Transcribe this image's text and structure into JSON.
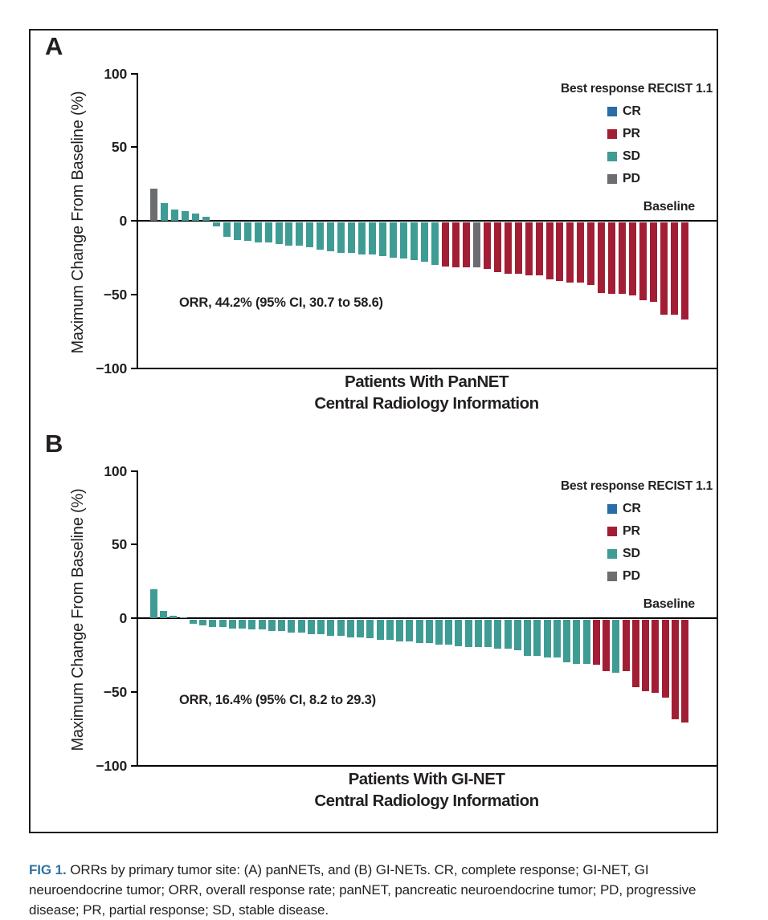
{
  "colors": {
    "CR": "#2A6CA8",
    "PR": "#A21E35",
    "SD": "#3F9C94",
    "PD": "#6C6D70",
    "fig_label": "#2E74A3",
    "axis": "#000000"
  },
  "legend": {
    "title": "Best response RECIST 1.1",
    "entries": [
      {
        "label": "CR",
        "code": "CR"
      },
      {
        "label": "PR",
        "code": "PR"
      },
      {
        "label": "SD",
        "code": "SD"
      },
      {
        "label": "PD",
        "code": "PD"
      }
    ]
  },
  "chart_data": [
    {
      "type": "bar",
      "panel": "A",
      "title_line1": "Patients With PanNET",
      "title_line2": "Central Radiology Information",
      "ylabel": "Maximum Change From Baseline (%)",
      "yticks": [
        "100",
        "50",
        "0",
        "−50",
        "−100"
      ],
      "ylim": [
        -100,
        100
      ],
      "baseline_label": "Baseline",
      "annotation": "ORR, 44.2% (95% CI, 30.7 to 58.6)",
      "bars": [
        [
          22,
          "PD"
        ],
        [
          12,
          "SD"
        ],
        [
          8,
          "SD"
        ],
        [
          7,
          "SD"
        ],
        [
          5,
          "SD"
        ],
        [
          3,
          "SD"
        ],
        [
          -3,
          "SD"
        ],
        [
          -10,
          "SD"
        ],
        [
          -12,
          "SD"
        ],
        [
          -13,
          "SD"
        ],
        [
          -14,
          "SD"
        ],
        [
          -14,
          "SD"
        ],
        [
          -15,
          "SD"
        ],
        [
          -16,
          "SD"
        ],
        [
          -16,
          "SD"
        ],
        [
          -17,
          "SD"
        ],
        [
          -19,
          "SD"
        ],
        [
          -20,
          "SD"
        ],
        [
          -21,
          "SD"
        ],
        [
          -21,
          "SD"
        ],
        [
          -22,
          "SD"
        ],
        [
          -22,
          "SD"
        ],
        [
          -23,
          "SD"
        ],
        [
          -24,
          "SD"
        ],
        [
          -25,
          "SD"
        ],
        [
          -26,
          "SD"
        ],
        [
          -27,
          "SD"
        ],
        [
          -29,
          "SD"
        ],
        [
          -30,
          "PR"
        ],
        [
          -31,
          "PR"
        ],
        [
          -31,
          "PR"
        ],
        [
          -31,
          "PD"
        ],
        [
          -32,
          "PR"
        ],
        [
          -34,
          "PR"
        ],
        [
          -35,
          "PR"
        ],
        [
          -35,
          "PR"
        ],
        [
          -36,
          "PR"
        ],
        [
          -36,
          "PR"
        ],
        [
          -39,
          "PR"
        ],
        [
          -40,
          "PR"
        ],
        [
          -41,
          "PR"
        ],
        [
          -41,
          "PR"
        ],
        [
          -43,
          "PR"
        ],
        [
          -48,
          "PR"
        ],
        [
          -49,
          "PR"
        ],
        [
          -49,
          "PR"
        ],
        [
          -50,
          "PR"
        ],
        [
          -53,
          "PR"
        ],
        [
          -54,
          "PR"
        ],
        [
          -63,
          "PR"
        ],
        [
          -63,
          "PR"
        ],
        [
          -66,
          "PR"
        ]
      ]
    },
    {
      "type": "bar",
      "panel": "B",
      "title_line1": "Patients With GI-NET",
      "title_line2": "Central Radiology Information",
      "ylabel": "Maximum Change From Baseline (%)",
      "yticks": [
        "100",
        "50",
        "0",
        "−50",
        "−100"
      ],
      "ylim": [
        -100,
        100
      ],
      "baseline_label": "Baseline",
      "annotation": "ORR, 16.4% (95% CI, 8.2 to 29.3)",
      "bars": [
        [
          20,
          "SD"
        ],
        [
          5,
          "SD"
        ],
        [
          2,
          "SD"
        ],
        [
          1,
          "SD"
        ],
        [
          -3,
          "SD"
        ],
        [
          -4,
          "SD"
        ],
        [
          -5,
          "SD"
        ],
        [
          -5,
          "SD"
        ],
        [
          -6,
          "SD"
        ],
        [
          -6,
          "SD"
        ],
        [
          -7,
          "SD"
        ],
        [
          -7,
          "SD"
        ],
        [
          -8,
          "SD"
        ],
        [
          -8,
          "SD"
        ],
        [
          -9,
          "SD"
        ],
        [
          -9,
          "SD"
        ],
        [
          -10,
          "SD"
        ],
        [
          -10,
          "SD"
        ],
        [
          -11,
          "SD"
        ],
        [
          -11,
          "SD"
        ],
        [
          -12,
          "SD"
        ],
        [
          -12,
          "SD"
        ],
        [
          -13,
          "SD"
        ],
        [
          -14,
          "SD"
        ],
        [
          -14,
          "SD"
        ],
        [
          -15,
          "SD"
        ],
        [
          -15,
          "SD"
        ],
        [
          -16,
          "SD"
        ],
        [
          -16,
          "SD"
        ],
        [
          -17,
          "SD"
        ],
        [
          -17,
          "SD"
        ],
        [
          -18,
          "SD"
        ],
        [
          -19,
          "SD"
        ],
        [
          -19,
          "SD"
        ],
        [
          -19,
          "SD"
        ],
        [
          -20,
          "SD"
        ],
        [
          -20,
          "SD"
        ],
        [
          -21,
          "SD"
        ],
        [
          -25,
          "SD"
        ],
        [
          -25,
          "SD"
        ],
        [
          -26,
          "SD"
        ],
        [
          -26,
          "SD"
        ],
        [
          -29,
          "SD"
        ],
        [
          -30,
          "SD"
        ],
        [
          -30,
          "SD"
        ],
        [
          -31,
          "PR"
        ],
        [
          -35,
          "PR"
        ],
        [
          -36,
          "SD"
        ],
        [
          -35,
          "PR"
        ],
        [
          -46,
          "PR"
        ],
        [
          -49,
          "PR"
        ],
        [
          -50,
          "PR"
        ],
        [
          -53,
          "PR"
        ],
        [
          -68,
          "PR"
        ],
        [
          -70,
          "PR"
        ]
      ]
    }
  ],
  "caption": {
    "fig_label": "FIG 1.",
    "text": " ORRs by primary tumor site: (A) panNETs, and (B) GI-NETs. CR, complete response; GI-NET, GI neuroendocrine tumor; ORR, overall response rate; panNET, pancreatic neuroendocrine tumor; PD, progressive disease; PR, partial response; SD, stable disease."
  }
}
